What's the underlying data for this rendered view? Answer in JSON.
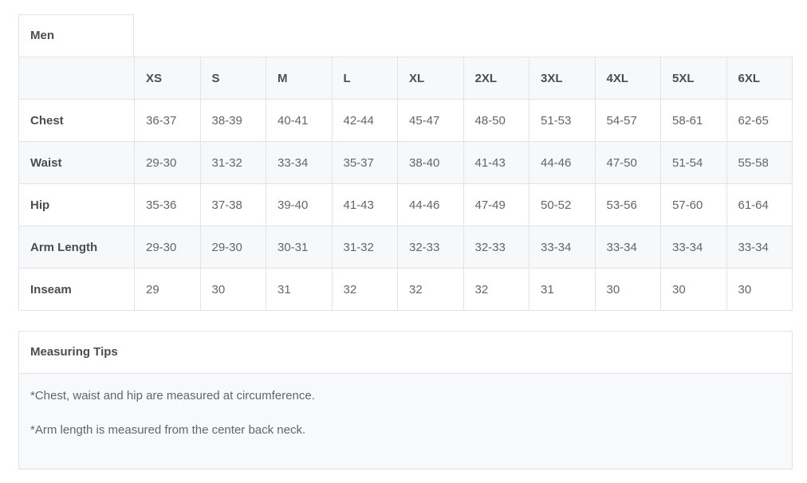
{
  "tab": {
    "label": "Men"
  },
  "size_chart": {
    "columns": [
      "XS",
      "S",
      "M",
      "L",
      "XL",
      "2XL",
      "3XL",
      "4XL",
      "5XL",
      "6XL"
    ],
    "rows": [
      {
        "label": "Chest",
        "values": [
          "36-37",
          "38-39",
          "40-41",
          "42-44",
          "45-47",
          "48-50",
          "51-53",
          "54-57",
          "58-61",
          "62-65"
        ]
      },
      {
        "label": "Waist",
        "values": [
          "29-30",
          "31-32",
          "33-34",
          "35-37",
          "38-40",
          "41-43",
          "44-46",
          "47-50",
          "51-54",
          "55-58"
        ]
      },
      {
        "label": "Hip",
        "values": [
          "35-36",
          "37-38",
          "39-40",
          "41-43",
          "44-46",
          "47-49",
          "50-52",
          "53-56",
          "57-60",
          "61-64"
        ]
      },
      {
        "label": "Arm Length",
        "values": [
          "29-30",
          "29-30",
          "30-31",
          "31-32",
          "32-33",
          "32-33",
          "33-34",
          "33-34",
          "33-34",
          "33-34"
        ]
      },
      {
        "label": "Inseam",
        "values": [
          "29",
          "30",
          "31",
          "32",
          "32",
          "32",
          "31",
          "30",
          "30",
          "30"
        ]
      }
    ]
  },
  "measuring_tips": {
    "title": "Measuring Tips",
    "notes": [
      "*Chest, waist and hip are measured at circumference.",
      "*Arm length is measured from the center back neck."
    ]
  },
  "colors": {
    "border": "#e2e3e5",
    "stripe_background": "#f7f8f9",
    "tips_body_background": "#f8f9fa",
    "heading_text": "#4c4d50",
    "body_text": "#64656a"
  }
}
